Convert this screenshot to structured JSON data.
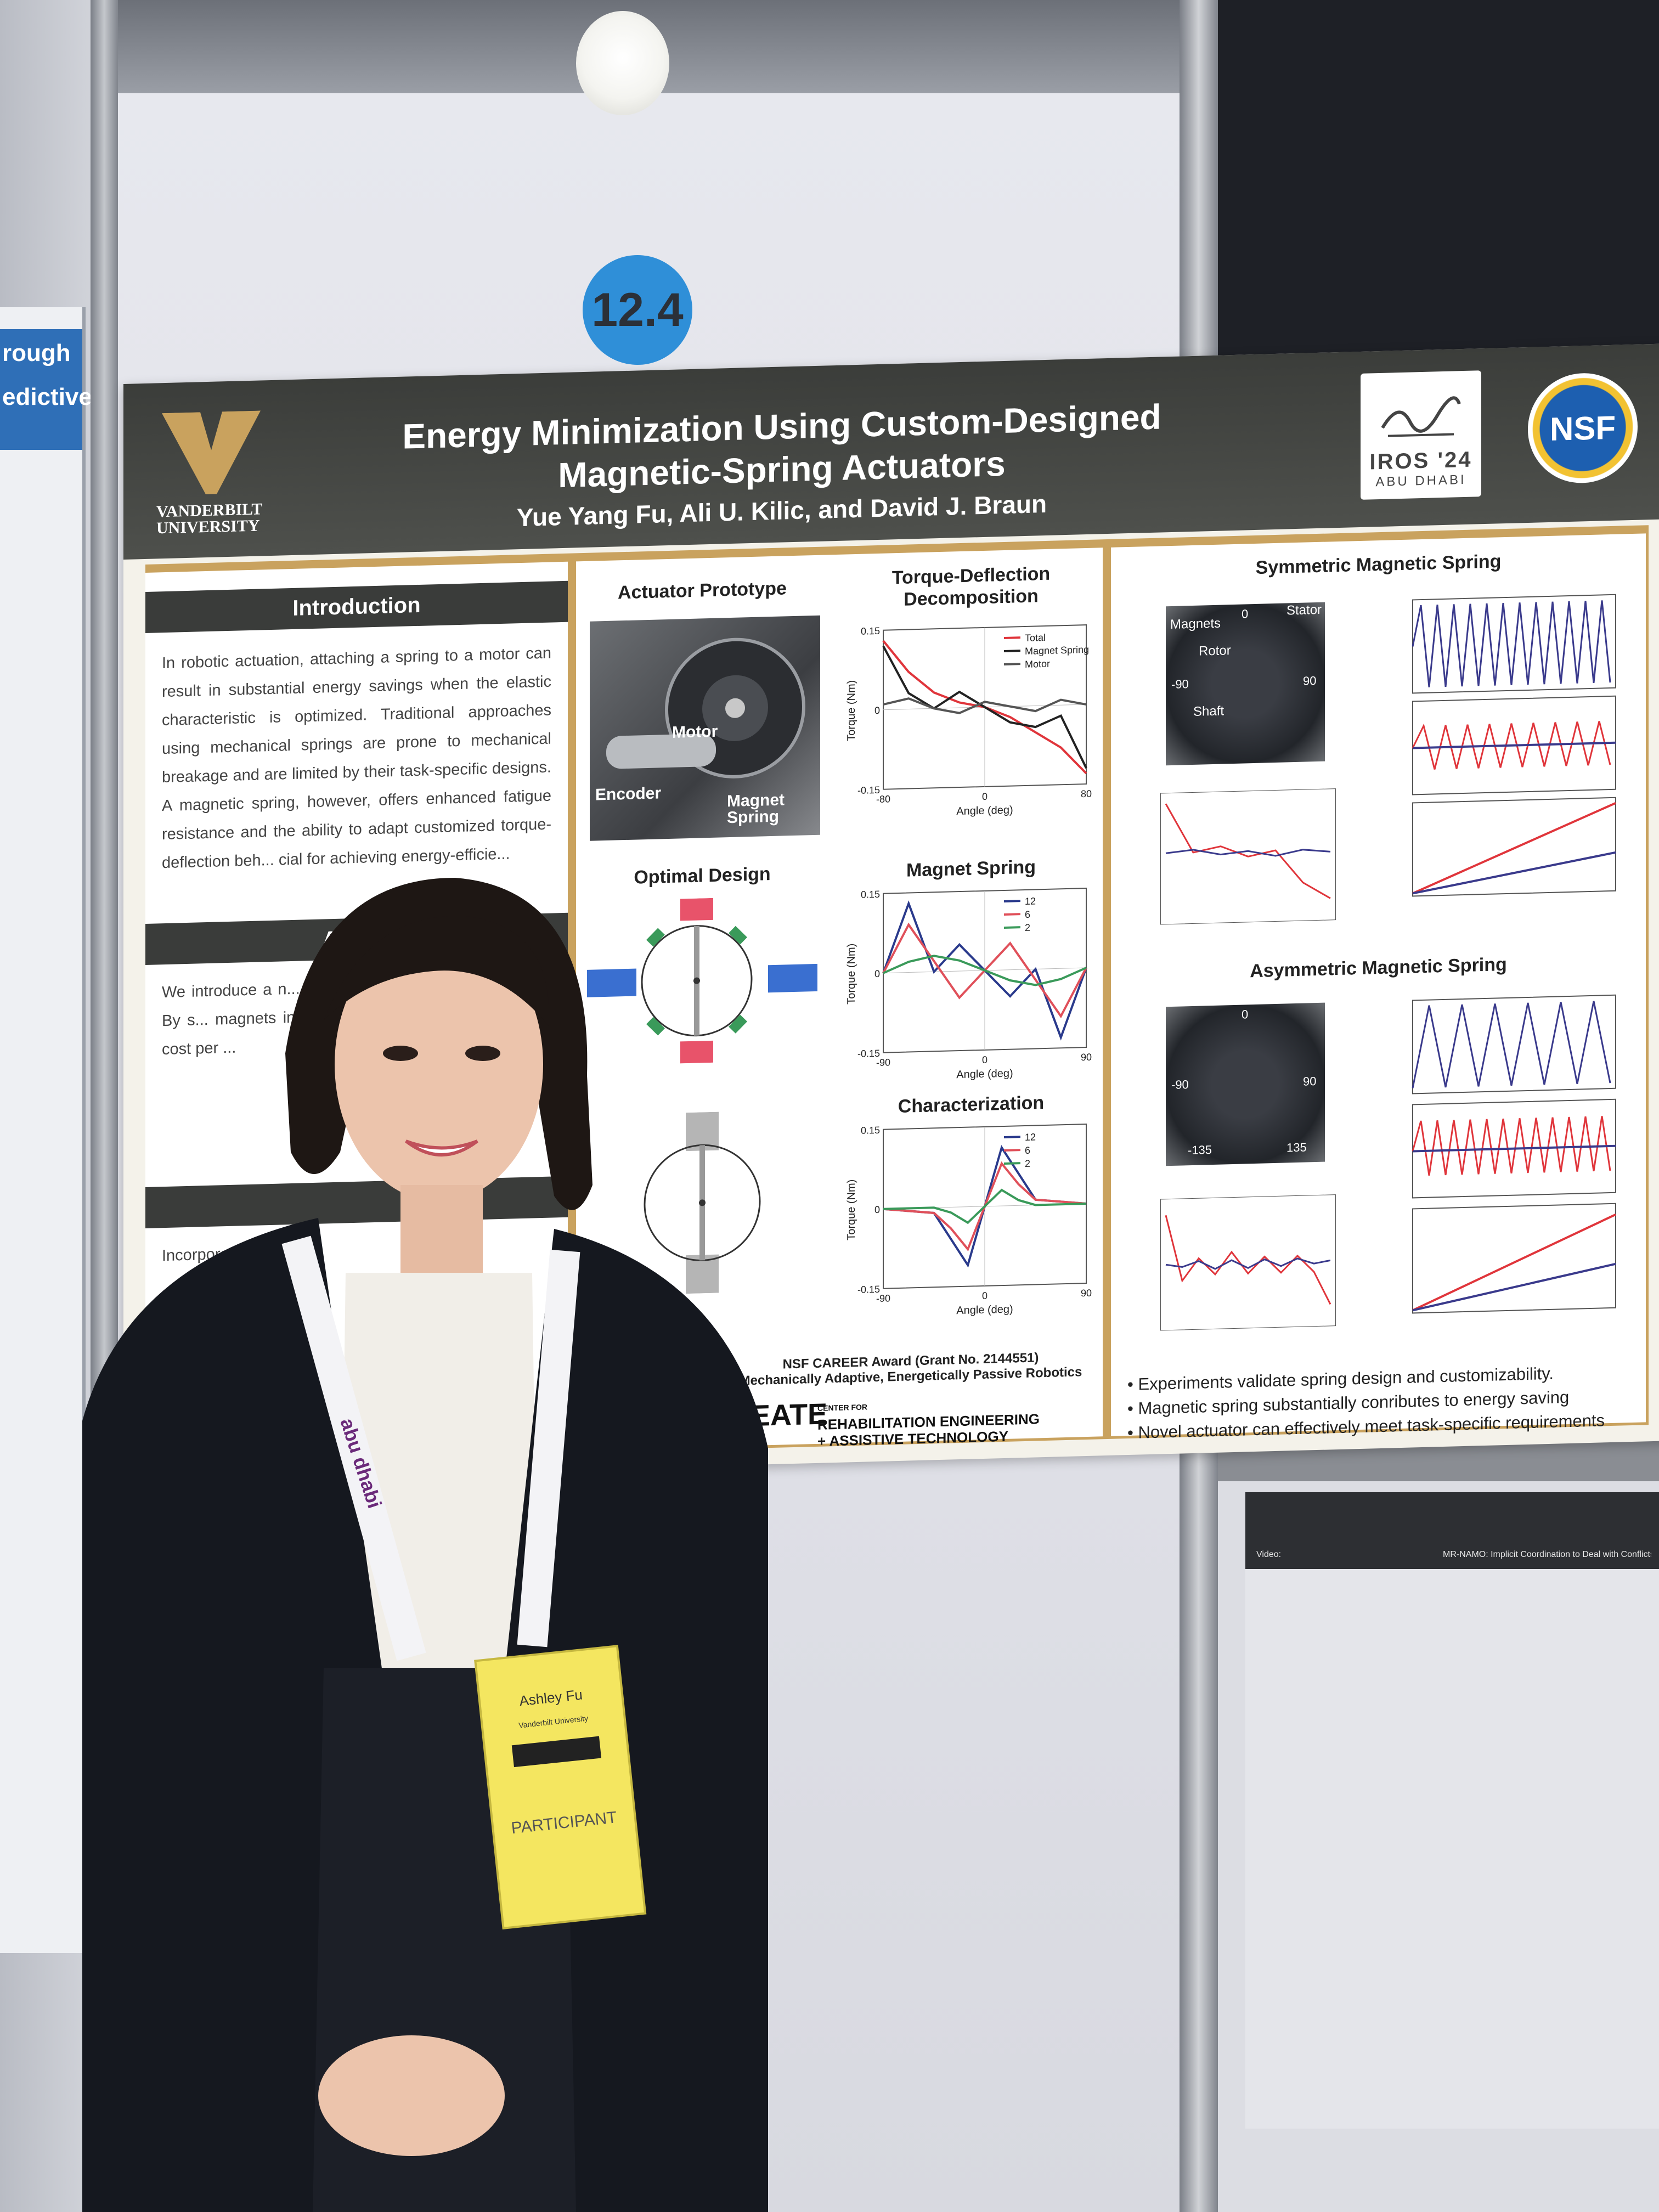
{
  "booth": {
    "number_badge": "12.4",
    "left_poster_fragment": [
      "rough",
      "edictive"
    ]
  },
  "poster": {
    "title_line1": "Energy Minimization Using Custom-Designed",
    "title_line2": "Magnetic-Spring Actuators",
    "authors": "Yue Yang Fu, Ali U. Kilic, and David J. Braun",
    "logo_university_line1": "VANDERBILT",
    "logo_university_line2": "UNIVERSITY",
    "conference_logo_line1": "IROS '24",
    "conference_logo_line2": "ABU DHABI",
    "sponsor_logo": "NSF",
    "sections": {
      "introduction": {
        "heading": "Introduction",
        "text": "In robotic actuation, attaching a spring to a motor can result in substantial energy savings when the elastic characteristic is optimized. Traditional approaches using mechanical springs are prone to mechanical breakage and are limited by their task-specific designs. A magnetic spring, however, offers enhanced fatigue resistance and the ability to adapt customized torque-deflection beh... cial for achieving energy-efficie..."
      },
      "approach": {
        "heading": "Appr...",
        "text": "We introduce a n... systematic design... petitive tasks. By s... magnets in a ro... we can realize 50... energy cost per ..."
      },
      "third_fragment": "Incorpora... m..."
    },
    "actuator_prototype": {
      "title": "Actuator Prototype",
      "labels": [
        "Motor",
        "Encoder",
        "Magnet Spring"
      ]
    },
    "torque_deflection": {
      "title_line1": "Torque-Deflection",
      "title_line2": "Decomposition"
    },
    "optimal_design": {
      "title": "Optimal Design"
    },
    "magnet_spring": {
      "title": "Magnet Spring"
    },
    "characterization": {
      "title": "Characterization"
    },
    "symmetric": {
      "title": "Symmetric Magnetic Spring",
      "photo_labels": [
        "Magnets",
        "Rotor",
        "Stator",
        "Shaft",
        "0",
        "-90",
        "90"
      ]
    },
    "asymmetric": {
      "title": "Asymmetric Magnetic Spring",
      "photo_labels": [
        "0",
        "-90",
        "90",
        "-135",
        "135"
      ]
    },
    "funding": {
      "line1": "NSF CAREER Award (Grant No. 2144551)",
      "line2": "Mechanically Adaptive, Energetically Passive Robotics",
      "center_logo": "CREATE",
      "center_small": "CENTER FOR",
      "center_line1": "REHABILITATION ENGINEERING",
      "center_line2": "+ ASSISTIVE TECHNOLOGY"
    },
    "conclusions": [
      "Experiments validate spring design and customizability.",
      "Magnetic spring substantially conributes to energy saving",
      "Novel actuator can effectively meet task-specific requirements"
    ]
  },
  "lanyard": {
    "name": "Ashley Fu",
    "affiliation": "Vanderbilt University",
    "role": "PARTICIPANT",
    "strap_text": "abu dhabi"
  },
  "right_strip": {
    "video_label": "Video:",
    "footer_text": "MR-NAMO: Implicit Coordination to Deal with Conflicts and Deadlocks"
  },
  "chart_data": [
    {
      "type": "line",
      "title": "Torque-Deflection Decomposition",
      "xlabel": "Angle (deg)",
      "ylabel": "Torque (Nm)",
      "xlim": [
        -80,
        80
      ],
      "ylim": [
        -0.15,
        0.15
      ],
      "x": [
        -80,
        -60,
        -40,
        -20,
        0,
        20,
        40,
        60,
        80
      ],
      "series": [
        {
          "name": "Total",
          "color": "#e0353b",
          "values": [
            0.13,
            0.07,
            0.03,
            0.01,
            0.0,
            -0.02,
            -0.05,
            -0.08,
            -0.13
          ]
        },
        {
          "name": "Magnet Spring",
          "color": "#222222",
          "values": [
            0.12,
            0.03,
            0.0,
            0.03,
            0.0,
            -0.03,
            -0.04,
            -0.02,
            -0.12
          ]
        },
        {
          "name": "Motor",
          "color": "#555555",
          "values": [
            0.01,
            0.02,
            0.0,
            -0.01,
            0.01,
            0.0,
            -0.01,
            0.01,
            0.0
          ]
        }
      ]
    },
    {
      "type": "line",
      "title": "Magnet Spring",
      "xlabel": "Angle (deg)",
      "ylabel": "Torque (Nm)",
      "xlim": [
        -90,
        90
      ],
      "ylim": [
        -0.15,
        0.15
      ],
      "x": [
        -90,
        -67.5,
        -45,
        -22.5,
        0,
        22.5,
        45,
        67.5,
        90
      ],
      "series": [
        {
          "name": "12",
          "color": "#2a3a8c",
          "values": [
            0.0,
            0.13,
            0.0,
            0.05,
            0.0,
            -0.05,
            0.0,
            -0.13,
            0.0
          ]
        },
        {
          "name": "6",
          "color": "#e0505a",
          "values": [
            0.0,
            0.09,
            0.02,
            -0.05,
            0.0,
            0.05,
            -0.02,
            -0.09,
            0.0
          ]
        },
        {
          "name": "2",
          "color": "#3a9a5a",
          "values": [
            0.0,
            0.02,
            0.03,
            0.02,
            0.0,
            -0.02,
            -0.03,
            -0.02,
            0.0
          ]
        }
      ]
    },
    {
      "type": "line",
      "title": "Characterization",
      "xlabel": "Angle (deg)",
      "ylabel": "Torque (Nm)",
      "xlim": [
        -90,
        90
      ],
      "ylim": [
        -0.15,
        0.15
      ],
      "x": [
        -90,
        -45,
        -30,
        -15,
        0,
        15,
        30,
        45,
        90
      ],
      "series": [
        {
          "name": "12",
          "color": "#2a3a8c",
          "values": [
            0.0,
            -0.01,
            -0.06,
            -0.11,
            0.0,
            0.11,
            0.06,
            0.01,
            0.0
          ]
        },
        {
          "name": "6",
          "color": "#e0505a",
          "values": [
            0.0,
            -0.01,
            -0.04,
            -0.08,
            0.0,
            0.08,
            0.04,
            0.01,
            0.0
          ]
        },
        {
          "name": "2",
          "color": "#3a9a5a",
          "values": [
            0.0,
            0.0,
            -0.01,
            -0.03,
            0.0,
            0.03,
            0.01,
            0.0,
            0.0
          ]
        }
      ]
    }
  ]
}
